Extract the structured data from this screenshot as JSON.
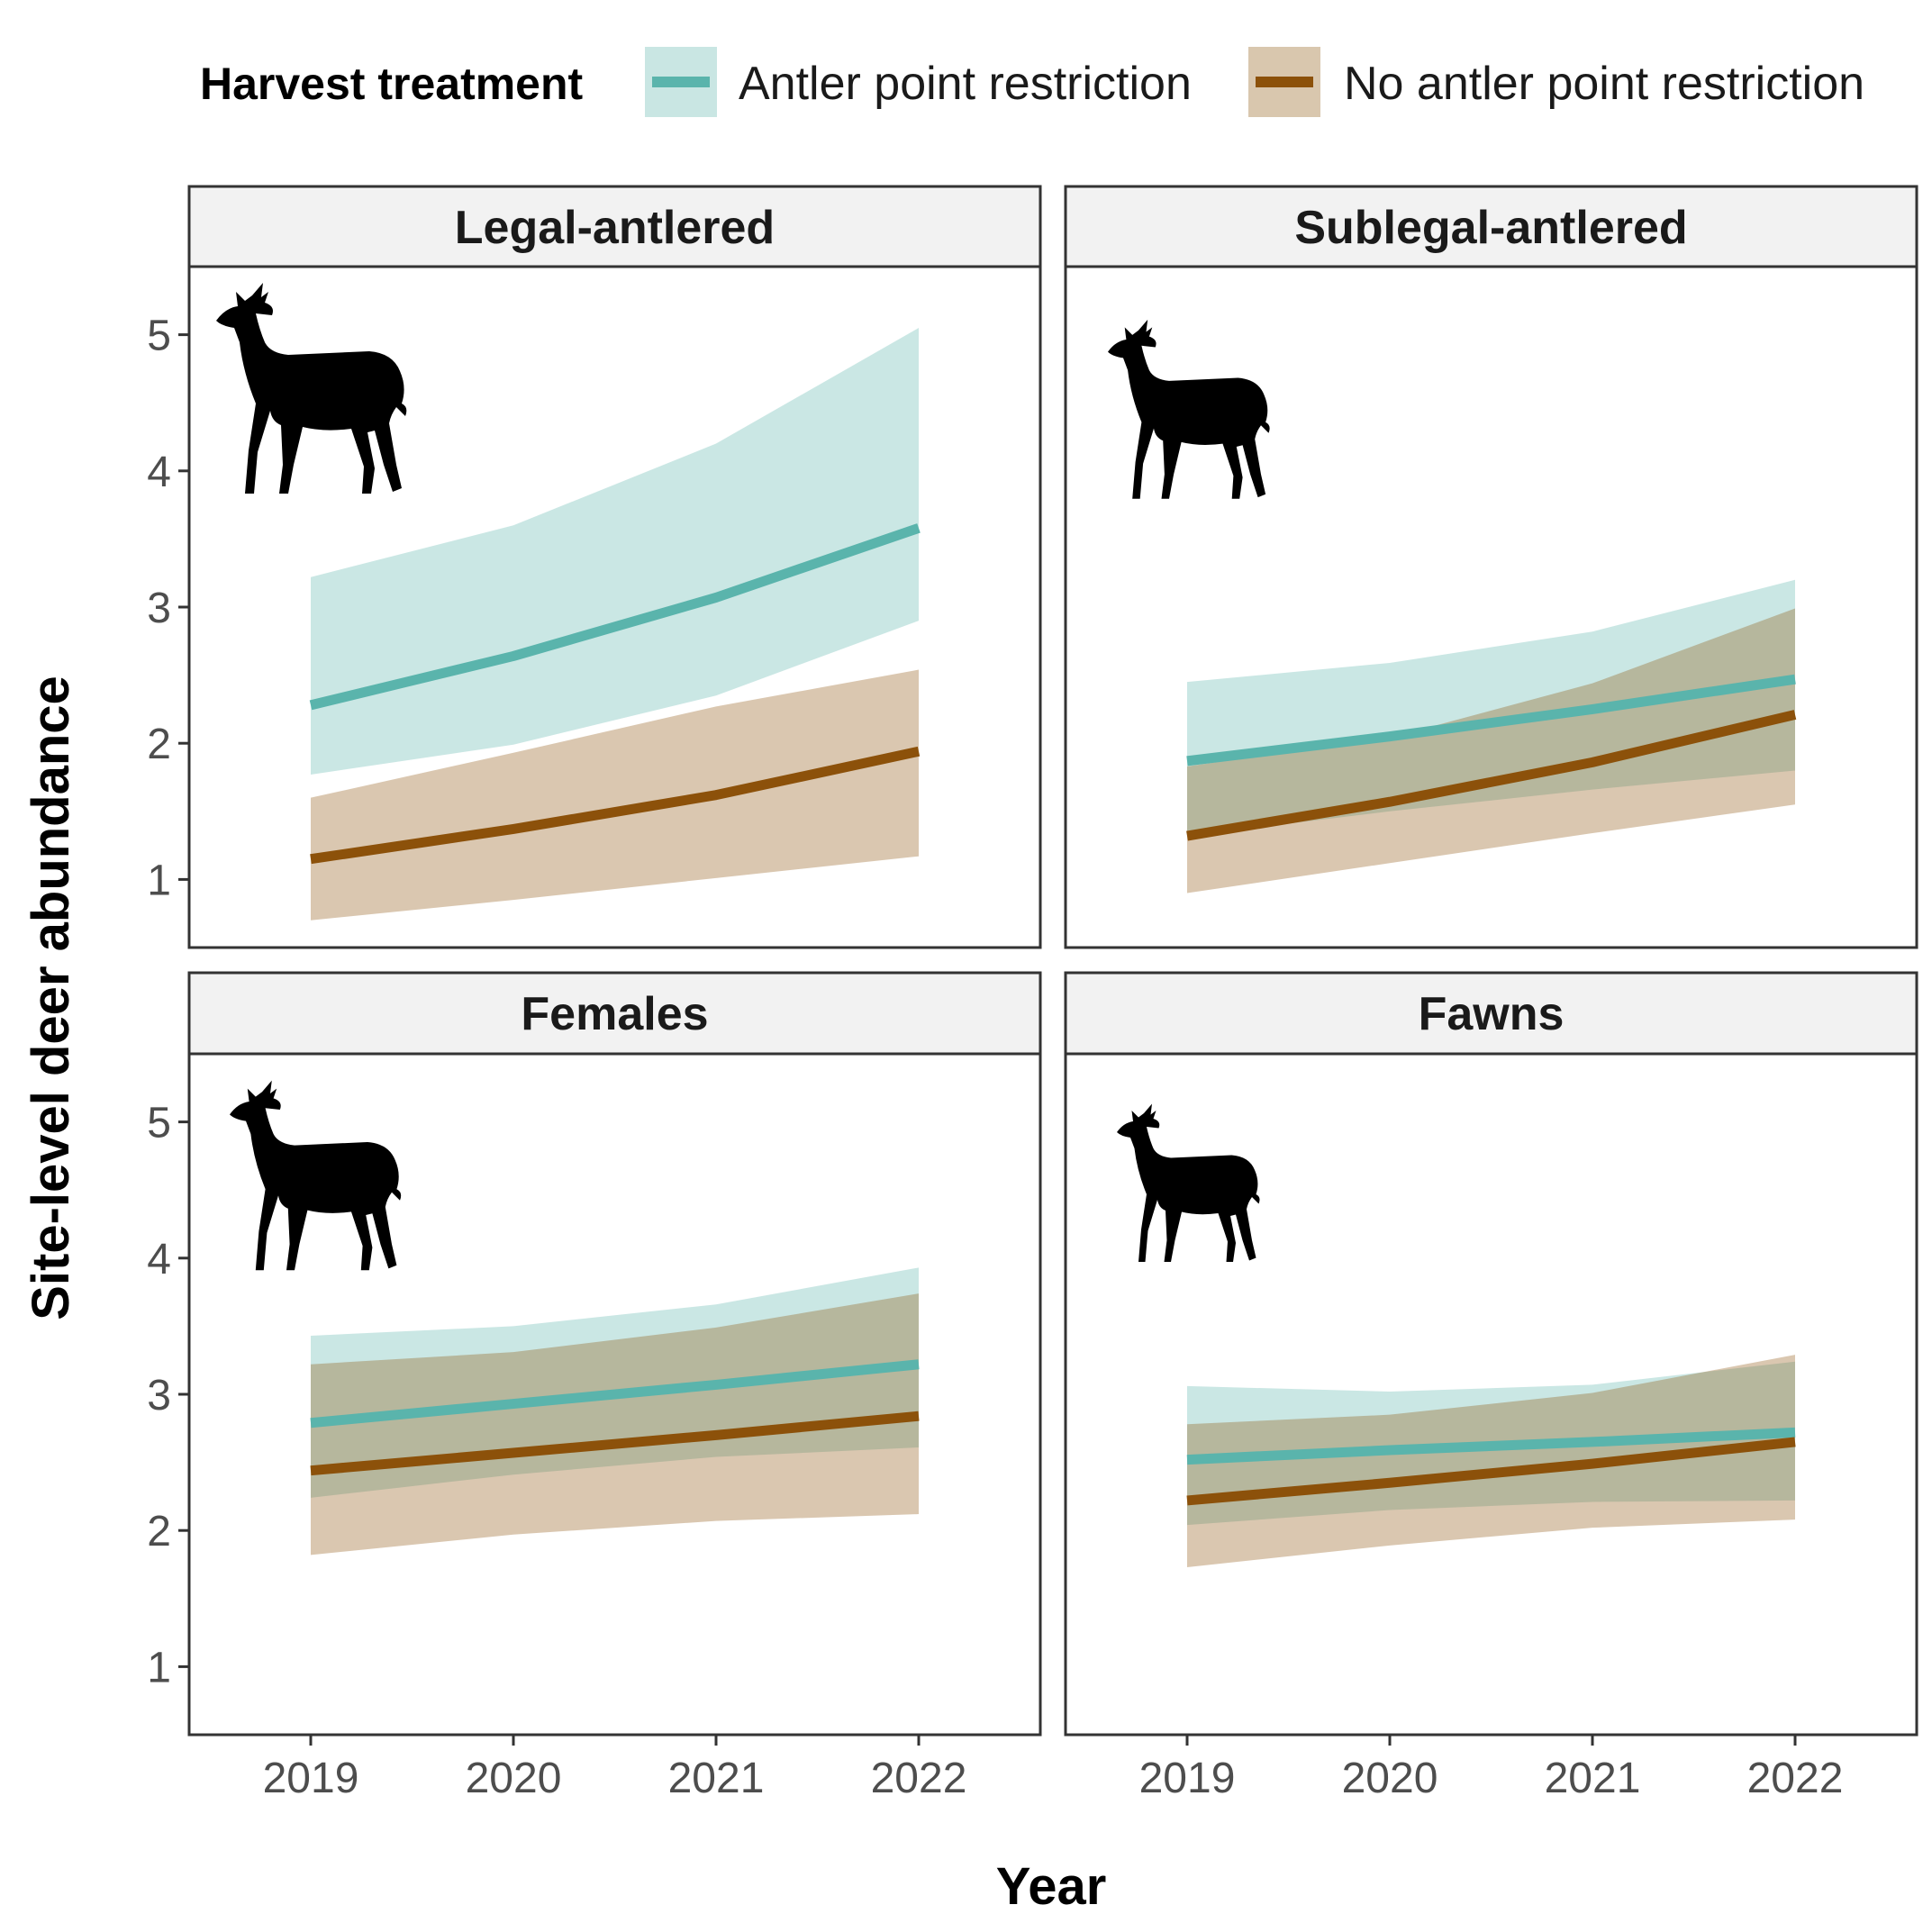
{
  "chart_data": {
    "type": "line",
    "xlabel": "Year",
    "ylabel": "Site-level deer abundance",
    "x": [
      2019,
      2020,
      2021,
      2022
    ],
    "ylim": [
      0.5,
      5.5
    ],
    "yticks": [
      1,
      2,
      3,
      4,
      5
    ],
    "legend": {
      "title": "Harvest treatment",
      "position": "top",
      "entries": [
        {
          "label": "Antler point restriction",
          "color": "#5ab4ac",
          "fill": "#c9e6e3"
        },
        {
          "label": "No antler point restriction",
          "color": "#8c510a",
          "fill": "#d9c7ae"
        }
      ]
    },
    "panels": [
      {
        "title": "Legal-antlered",
        "icon": "antlered-buck-silhouette-icon",
        "series": [
          {
            "name": "Antler point restriction",
            "values": [
              2.28,
              2.64,
              3.07,
              3.58
            ],
            "lower": [
              1.77,
              1.99,
              2.35,
              2.9
            ],
            "upper": [
              3.22,
              3.6,
              4.2,
              5.05
            ]
          },
          {
            "name": "No antler point restriction",
            "values": [
              1.15,
              1.37,
              1.62,
              1.94
            ],
            "lower": [
              0.7,
              0.85,
              1.01,
              1.17
            ],
            "upper": [
              1.6,
              1.93,
              2.27,
              2.54
            ]
          }
        ]
      },
      {
        "title": "Sublegal-antlered",
        "icon": "young-buck-silhouette-icon",
        "series": [
          {
            "name": "Antler point restriction",
            "values": [
              1.87,
              2.05,
              2.25,
              2.47
            ],
            "lower": [
              1.32,
              1.5,
              1.66,
              1.8
            ],
            "upper": [
              2.45,
              2.59,
              2.82,
              3.2
            ]
          },
          {
            "name": "No antler point restriction",
            "values": [
              1.32,
              1.57,
              1.86,
              2.21
            ],
            "lower": [
              0.9,
              1.12,
              1.34,
              1.55
            ],
            "upper": [
              1.83,
              2.04,
              2.44,
              2.99
            ]
          }
        ]
      },
      {
        "title": "Females",
        "icon": "doe-silhouette-icon",
        "series": [
          {
            "name": "Antler point restriction",
            "values": [
              2.79,
              2.93,
              3.07,
              3.22
            ],
            "lower": [
              2.24,
              2.41,
              2.54,
              2.61
            ],
            "upper": [
              3.43,
              3.5,
              3.66,
              3.93
            ]
          },
          {
            "name": "No antler point restriction",
            "values": [
              2.44,
              2.57,
              2.7,
              2.84
            ],
            "lower": [
              1.82,
              1.97,
              2.07,
              2.12
            ],
            "upper": [
              3.22,
              3.31,
              3.49,
              3.74
            ]
          }
        ]
      },
      {
        "title": "Fawns",
        "icon": "fawn-silhouette-icon",
        "series": [
          {
            "name": "Antler point restriction",
            "values": [
              2.52,
              2.59,
              2.65,
              2.72
            ],
            "lower": [
              2.04,
              2.15,
              2.21,
              2.22
            ],
            "upper": [
              3.06,
              3.02,
              3.07,
              3.24
            ]
          },
          {
            "name": "No antler point restriction",
            "values": [
              2.22,
              2.35,
              2.49,
              2.65
            ],
            "lower": [
              1.73,
              1.89,
              2.02,
              2.08
            ],
            "upper": [
              2.78,
              2.85,
              3.01,
              3.29
            ]
          }
        ]
      }
    ]
  }
}
